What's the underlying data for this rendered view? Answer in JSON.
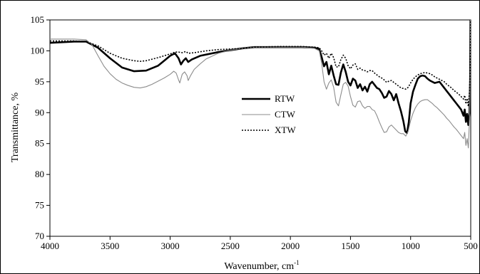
{
  "chart_data": {
    "type": "line",
    "title": "",
    "xlabel": "Wavenumber, cm",
    "xlabel_sup": "-1",
    "ylabel": "Transmittance, %",
    "xlim": [
      4000,
      500
    ],
    "ylim": [
      70,
      105
    ],
    "x_reversed": true,
    "x_ticks": [
      4000,
      3500,
      3000,
      2500,
      2000,
      1500,
      1000,
      500
    ],
    "y_ticks": [
      70,
      75,
      80,
      85,
      90,
      95,
      100,
      105
    ],
    "grid": false,
    "legend_position": "center",
    "series": [
      {
        "name": "RTW",
        "color": "#000000",
        "style": "solid-thick",
        "points": [
          [
            4000,
            101.3
          ],
          [
            3900,
            101.4
          ],
          [
            3800,
            101.5
          ],
          [
            3700,
            101.5
          ],
          [
            3600,
            100.5
          ],
          [
            3500,
            98.8
          ],
          [
            3400,
            97.3
          ],
          [
            3300,
            96.7
          ],
          [
            3200,
            96.8
          ],
          [
            3100,
            97.6
          ],
          [
            3050,
            98.4
          ],
          [
            3000,
            99.2
          ],
          [
            2960,
            99.6
          ],
          [
            2930,
            98.8
          ],
          [
            2910,
            97.8
          ],
          [
            2890,
            98.4
          ],
          [
            2870,
            98.8
          ],
          [
            2850,
            98.2
          ],
          [
            2820,
            98.6
          ],
          [
            2750,
            99.2
          ],
          [
            2600,
            99.8
          ],
          [
            2400,
            100.4
          ],
          [
            2300,
            100.6
          ],
          [
            2100,
            100.6
          ],
          [
            1900,
            100.6
          ],
          [
            1800,
            100.5
          ],
          [
            1760,
            100.3
          ],
          [
            1740,
            99.0
          ],
          [
            1720,
            97.5
          ],
          [
            1700,
            98.2
          ],
          [
            1680,
            96.2
          ],
          [
            1660,
            97.6
          ],
          [
            1640,
            96.0
          ],
          [
            1620,
            94.6
          ],
          [
            1600,
            94.5
          ],
          [
            1580,
            96.5
          ],
          [
            1560,
            97.8
          ],
          [
            1540,
            96.6
          ],
          [
            1520,
            95.0
          ],
          [
            1500,
            94.4
          ],
          [
            1480,
            95.5
          ],
          [
            1460,
            95.2
          ],
          [
            1440,
            94.0
          ],
          [
            1420,
            94.6
          ],
          [
            1400,
            93.6
          ],
          [
            1380,
            94.2
          ],
          [
            1360,
            93.4
          ],
          [
            1340,
            94.6
          ],
          [
            1320,
            95.0
          ],
          [
            1300,
            94.5
          ],
          [
            1280,
            94.0
          ],
          [
            1260,
            93.8
          ],
          [
            1240,
            93.2
          ],
          [
            1220,
            92.4
          ],
          [
            1200,
            92.6
          ],
          [
            1180,
            93.5
          ],
          [
            1160,
            93.0
          ],
          [
            1140,
            92.0
          ],
          [
            1120,
            93.0
          ],
          [
            1100,
            91.5
          ],
          [
            1080,
            90.2
          ],
          [
            1060,
            88.6
          ],
          [
            1045,
            87.0
          ],
          [
            1030,
            86.7
          ],
          [
            1015,
            88.5
          ],
          [
            1000,
            91.5
          ],
          [
            980,
            93.4
          ],
          [
            960,
            94.5
          ],
          [
            940,
            95.5
          ],
          [
            920,
            95.9
          ],
          [
            900,
            96.0
          ],
          [
            880,
            95.9
          ],
          [
            860,
            95.5
          ],
          [
            840,
            95.2
          ],
          [
            820,
            95.0
          ],
          [
            800,
            94.8
          ],
          [
            780,
            94.9
          ],
          [
            760,
            95.0
          ],
          [
            740,
            94.5
          ],
          [
            720,
            94.0
          ],
          [
            700,
            93.5
          ],
          [
            680,
            93.0
          ],
          [
            660,
            92.5
          ],
          [
            640,
            92.0
          ],
          [
            620,
            91.5
          ],
          [
            600,
            91.0
          ],
          [
            580,
            90.5
          ],
          [
            560,
            89.5
          ],
          [
            550,
            90.5
          ],
          [
            540,
            88.5
          ],
          [
            530,
            89.8
          ],
          [
            520,
            88.0
          ],
          [
            510,
            90.0
          ],
          [
            505,
            95.0
          ],
          [
            502,
            105.0
          ]
        ]
      },
      {
        "name": "CTW",
        "color": "#8c8c8c",
        "style": "solid-thin",
        "points": [
          [
            4000,
            101.9
          ],
          [
            3900,
            101.9
          ],
          [
            3800,
            101.9
          ],
          [
            3700,
            101.8
          ],
          [
            3650,
            101.0
          ],
          [
            3600,
            99.2
          ],
          [
            3550,
            97.5
          ],
          [
            3500,
            96.3
          ],
          [
            3450,
            95.4
          ],
          [
            3400,
            94.8
          ],
          [
            3350,
            94.4
          ],
          [
            3300,
            94.1
          ],
          [
            3250,
            94.0
          ],
          [
            3200,
            94.2
          ],
          [
            3150,
            94.6
          ],
          [
            3100,
            95.1
          ],
          [
            3050,
            95.6
          ],
          [
            3000,
            96.2
          ],
          [
            2970,
            96.7
          ],
          [
            2950,
            96.4
          ],
          [
            2930,
            95.3
          ],
          [
            2920,
            94.8
          ],
          [
            2900,
            96.2
          ],
          [
            2880,
            96.6
          ],
          [
            2860,
            96.0
          ],
          [
            2850,
            95.2
          ],
          [
            2830,
            96.0
          ],
          [
            2800,
            97.0
          ],
          [
            2750,
            97.9
          ],
          [
            2700,
            98.7
          ],
          [
            2600,
            99.6
          ],
          [
            2500,
            100.1
          ],
          [
            2400,
            100.4
          ],
          [
            2300,
            100.6
          ],
          [
            2100,
            100.6
          ],
          [
            1900,
            100.6
          ],
          [
            1800,
            100.4
          ],
          [
            1760,
            100.0
          ],
          [
            1740,
            98.0
          ],
          [
            1720,
            95.0
          ],
          [
            1700,
            93.8
          ],
          [
            1680,
            94.8
          ],
          [
            1660,
            95.3
          ],
          [
            1640,
            94.1
          ],
          [
            1620,
            91.7
          ],
          [
            1600,
            91.1
          ],
          [
            1580,
            92.9
          ],
          [
            1560,
            94.6
          ],
          [
            1540,
            94.9
          ],
          [
            1520,
            94.3
          ],
          [
            1500,
            92.6
          ],
          [
            1480,
            91.2
          ],
          [
            1460,
            90.9
          ],
          [
            1440,
            91.8
          ],
          [
            1420,
            91.9
          ],
          [
            1400,
            91.1
          ],
          [
            1380,
            90.7
          ],
          [
            1360,
            91.0
          ],
          [
            1340,
            91.0
          ],
          [
            1320,
            90.5
          ],
          [
            1300,
            90.3
          ],
          [
            1280,
            89.5
          ],
          [
            1260,
            88.5
          ],
          [
            1240,
            87.6
          ],
          [
            1220,
            86.8
          ],
          [
            1200,
            86.9
          ],
          [
            1180,
            87.7
          ],
          [
            1160,
            88.0
          ],
          [
            1140,
            87.6
          ],
          [
            1120,
            87.2
          ],
          [
            1100,
            86.8
          ],
          [
            1080,
            86.6
          ],
          [
            1060,
            86.6
          ],
          [
            1040,
            86.2
          ],
          [
            1020,
            87.0
          ],
          [
            1000,
            88.7
          ],
          [
            980,
            89.9
          ],
          [
            960,
            90.8
          ],
          [
            940,
            91.4
          ],
          [
            920,
            91.8
          ],
          [
            900,
            92.0
          ],
          [
            880,
            92.1
          ],
          [
            860,
            92.1
          ],
          [
            840,
            91.8
          ],
          [
            820,
            91.5
          ],
          [
            800,
            91.1
          ],
          [
            780,
            90.8
          ],
          [
            760,
            90.4
          ],
          [
            740,
            90.0
          ],
          [
            720,
            89.6
          ],
          [
            700,
            89.1
          ],
          [
            680,
            88.7
          ],
          [
            660,
            88.2
          ],
          [
            640,
            87.7
          ],
          [
            620,
            87.3
          ],
          [
            600,
            86.8
          ],
          [
            580,
            86.3
          ],
          [
            560,
            85.8
          ],
          [
            550,
            86.8
          ],
          [
            540,
            84.7
          ],
          [
            530,
            85.8
          ],
          [
            520,
            84.3
          ],
          [
            510,
            89.0
          ],
          [
            505,
            95.0
          ],
          [
            502,
            105.0
          ]
        ]
      },
      {
        "name": "XTW",
        "color": "#000000",
        "style": "dotted",
        "points": [
          [
            4000,
            101.6
          ],
          [
            3900,
            101.6
          ],
          [
            3800,
            101.6
          ],
          [
            3700,
            101.5
          ],
          [
            3600,
            100.8
          ],
          [
            3500,
            99.6
          ],
          [
            3400,
            98.8
          ],
          [
            3300,
            98.4
          ],
          [
            3250,
            98.3
          ],
          [
            3200,
            98.4
          ],
          [
            3100,
            98.9
          ],
          [
            3000,
            99.5
          ],
          [
            2960,
            99.8
          ],
          [
            2930,
            99.8
          ],
          [
            2900,
            99.7
          ],
          [
            2870,
            99.9
          ],
          [
            2850,
            99.6
          ],
          [
            2800,
            99.7
          ],
          [
            2700,
            100.0
          ],
          [
            2600,
            100.2
          ],
          [
            2400,
            100.4
          ],
          [
            2300,
            100.6
          ],
          [
            2100,
            100.7
          ],
          [
            1900,
            100.7
          ],
          [
            1800,
            100.6
          ],
          [
            1760,
            100.5
          ],
          [
            1740,
            100.0
          ],
          [
            1720,
            99.3
          ],
          [
            1700,
            99.6
          ],
          [
            1680,
            98.8
          ],
          [
            1660,
            99.6
          ],
          [
            1640,
            98.9
          ],
          [
            1620,
            97.4
          ],
          [
            1600,
            97.4
          ],
          [
            1580,
            98.6
          ],
          [
            1560,
            99.3
          ],
          [
            1540,
            98.8
          ],
          [
            1520,
            97.6
          ],
          [
            1500,
            97.1
          ],
          [
            1480,
            97.7
          ],
          [
            1460,
            97.9
          ],
          [
            1440,
            97.0
          ],
          [
            1420,
            97.2
          ],
          [
            1400,
            96.9
          ],
          [
            1380,
            96.8
          ],
          [
            1360,
            96.6
          ],
          [
            1340,
            96.8
          ],
          [
            1320,
            96.8
          ],
          [
            1300,
            96.4
          ],
          [
            1280,
            96.1
          ],
          [
            1260,
            95.8
          ],
          [
            1240,
            95.6
          ],
          [
            1220,
            95.3
          ],
          [
            1200,
            94.9
          ],
          [
            1180,
            95.1
          ],
          [
            1160,
            95.2
          ],
          [
            1140,
            94.9
          ],
          [
            1120,
            94.6
          ],
          [
            1100,
            94.3
          ],
          [
            1080,
            94.0
          ],
          [
            1060,
            93.9
          ],
          [
            1040,
            93.8
          ],
          [
            1020,
            94.1
          ],
          [
            1000,
            94.8
          ],
          [
            980,
            95.4
          ],
          [
            960,
            95.8
          ],
          [
            940,
            96.1
          ],
          [
            920,
            96.3
          ],
          [
            900,
            96.4
          ],
          [
            880,
            96.5
          ],
          [
            860,
            96.4
          ],
          [
            840,
            96.3
          ],
          [
            820,
            96.1
          ],
          [
            800,
            95.8
          ],
          [
            780,
            95.6
          ],
          [
            760,
            95.4
          ],
          [
            740,
            95.2
          ],
          [
            720,
            95.0
          ],
          [
            700,
            94.6
          ],
          [
            680,
            94.3
          ],
          [
            660,
            94.0
          ],
          [
            640,
            93.6
          ],
          [
            620,
            93.3
          ],
          [
            600,
            93.0
          ],
          [
            580,
            92.6
          ],
          [
            560,
            92.2
          ],
          [
            550,
            92.8
          ],
          [
            540,
            91.4
          ],
          [
            530,
            92.3
          ],
          [
            520,
            91.0
          ],
          [
            510,
            93.5
          ],
          [
            505,
            97.0
          ],
          [
            502,
            105.0
          ]
        ]
      }
    ]
  }
}
